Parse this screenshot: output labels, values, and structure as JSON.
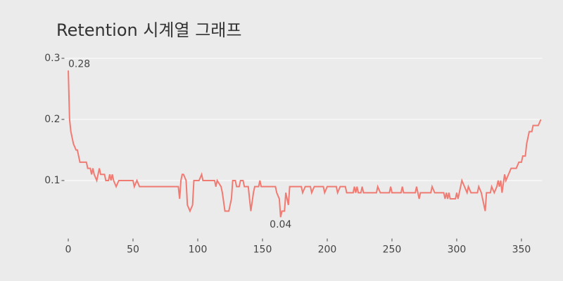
{
  "chart_data": {
    "type": "line",
    "title": "Retention 시계열 그래프",
    "series": [
      {
        "name": "Retention",
        "color": "#f07b72",
        "x": [
          0,
          1,
          2,
          4,
          6,
          7,
          8,
          9,
          14,
          15,
          17,
          18,
          19,
          20,
          22,
          23,
          24,
          25,
          28,
          29,
          31,
          32,
          33,
          34,
          35,
          37,
          39,
          50,
          51,
          53,
          55,
          85,
          86,
          87,
          88,
          89,
          91,
          92,
          94,
          96,
          97,
          100,
          101,
          103,
          104,
          113,
          114,
          115,
          118,
          119,
          121,
          124,
          126,
          127,
          129,
          130,
          132,
          133,
          135,
          136,
          139,
          141,
          143,
          144,
          146,
          147,
          148,
          149,
          160,
          161,
          163,
          164,
          165,
          167,
          168,
          170,
          171,
          180,
          181,
          183,
          187,
          188,
          190,
          197,
          198,
          200,
          207,
          208,
          210,
          214,
          215,
          220,
          221,
          222,
          223,
          224,
          226,
          227,
          228,
          238,
          239,
          241,
          248,
          249,
          250,
          256,
          257,
          258,
          259,
          268,
          269,
          270,
          271,
          272,
          280,
          281,
          283,
          290,
          291,
          292,
          293,
          294,
          295,
          299,
          300,
          301,
          302,
          304,
          306,
          308,
          309,
          311,
          316,
          317,
          319,
          321,
          322,
          323,
          326,
          327,
          329,
          331,
          332,
          333,
          334,
          335,
          337,
          338,
          340,
          342,
          346,
          348,
          350,
          351,
          353,
          354,
          356,
          358,
          359,
          363,
          365
        ],
        "values": [
          0.28,
          0.2,
          0.18,
          0.16,
          0.15,
          0.15,
          0.14,
          0.13,
          0.13,
          0.12,
          0.12,
          0.11,
          0.12,
          0.11,
          0.1,
          0.11,
          0.12,
          0.11,
          0.11,
          0.1,
          0.1,
          0.11,
          0.1,
          0.11,
          0.1,
          0.09,
          0.1,
          0.1,
          0.09,
          0.1,
          0.09,
          0.09,
          0.07,
          0.1,
          0.11,
          0.11,
          0.1,
          0.06,
          0.05,
          0.06,
          0.1,
          0.1,
          0.1,
          0.11,
          0.1,
          0.1,
          0.09,
          0.1,
          0.09,
          0.08,
          0.05,
          0.05,
          0.07,
          0.1,
          0.1,
          0.09,
          0.09,
          0.1,
          0.1,
          0.09,
          0.09,
          0.05,
          0.08,
          0.09,
          0.09,
          0.09,
          0.1,
          0.09,
          0.09,
          0.08,
          0.07,
          0.04,
          0.05,
          0.05,
          0.08,
          0.06,
          0.09,
          0.09,
          0.08,
          0.09,
          0.09,
          0.08,
          0.09,
          0.09,
          0.08,
          0.09,
          0.09,
          0.08,
          0.09,
          0.09,
          0.08,
          0.08,
          0.09,
          0.08,
          0.09,
          0.08,
          0.08,
          0.09,
          0.08,
          0.08,
          0.09,
          0.08,
          0.08,
          0.09,
          0.08,
          0.08,
          0.08,
          0.09,
          0.08,
          0.08,
          0.09,
          0.08,
          0.07,
          0.08,
          0.08,
          0.09,
          0.08,
          0.08,
          0.07,
          0.08,
          0.07,
          0.08,
          0.07,
          0.07,
          0.08,
          0.07,
          0.08,
          0.1,
          0.09,
          0.08,
          0.09,
          0.08,
          0.08,
          0.09,
          0.08,
          0.06,
          0.05,
          0.08,
          0.08,
          0.09,
          0.08,
          0.09,
          0.1,
          0.09,
          0.1,
          0.08,
          0.11,
          0.1,
          0.11,
          0.12,
          0.12,
          0.13,
          0.13,
          0.14,
          0.14,
          0.16,
          0.18,
          0.18,
          0.19,
          0.19,
          0.2
        ]
      }
    ],
    "annotations": [
      {
        "label": "0.28",
        "x": 0,
        "y": 0.28
      },
      {
        "label": "0.04",
        "x": 164,
        "y": 0.04
      }
    ],
    "xlim": [
      -3,
      366
    ],
    "ylim": [
      0.005,
      0.31
    ],
    "xticks": [
      0,
      50,
      100,
      150,
      200,
      250,
      300,
      350
    ],
    "yticks": [
      0.1,
      0.2,
      0.3
    ],
    "grid": true
  }
}
